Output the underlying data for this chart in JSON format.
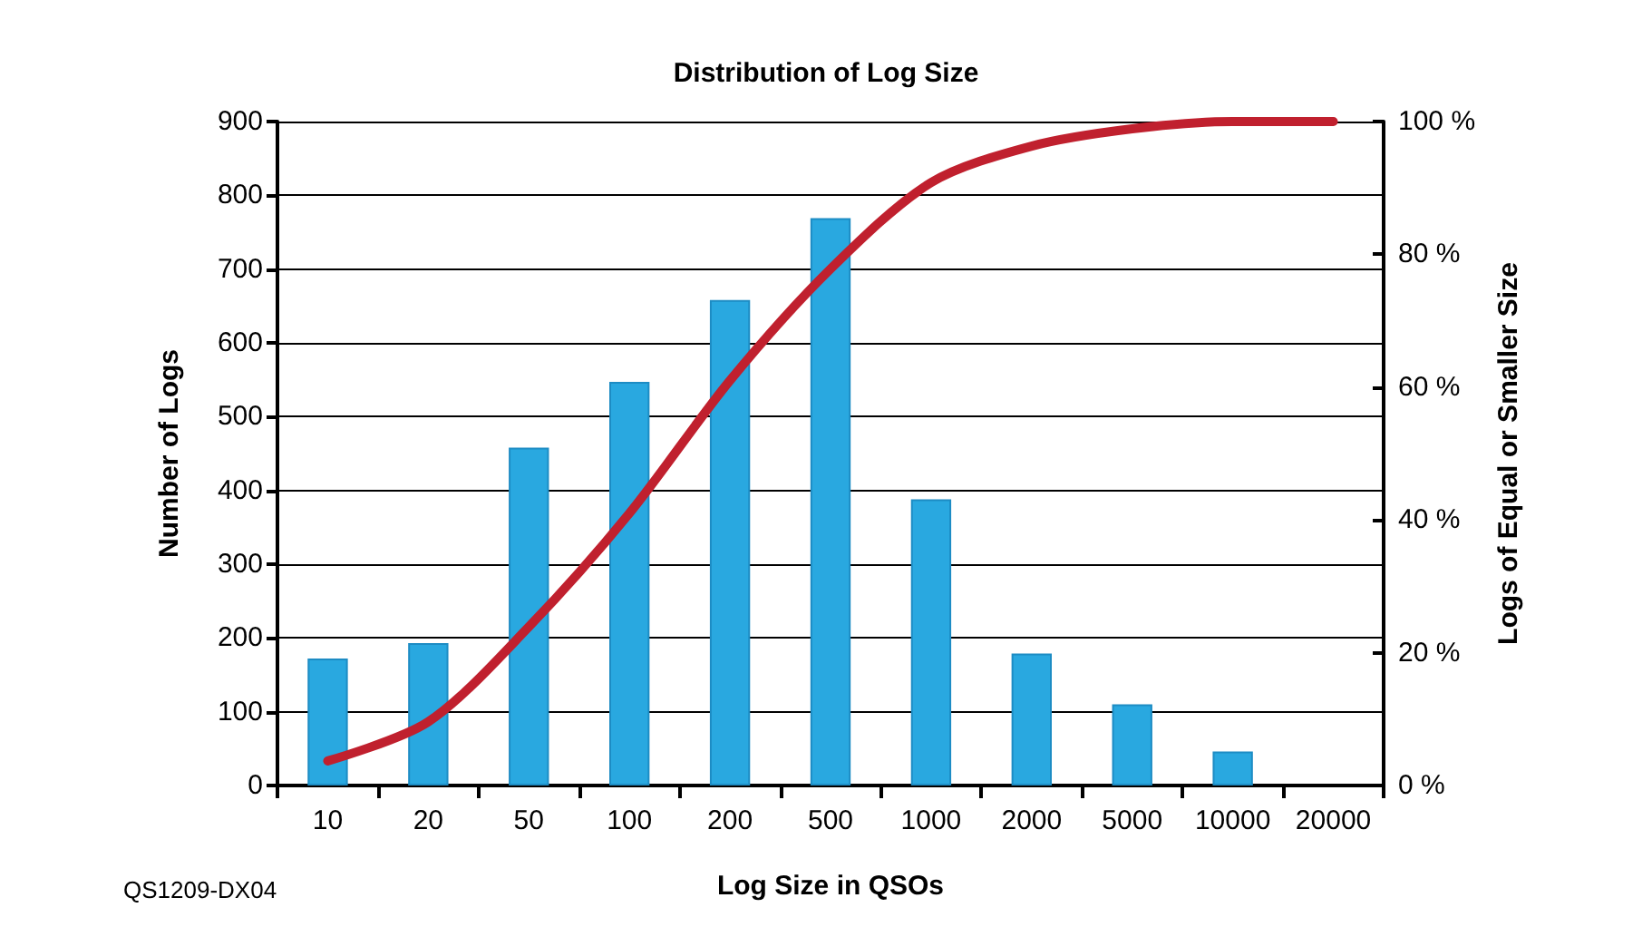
{
  "chart_data": {
    "type": "bar",
    "title": "Distribution of Log Size",
    "xlabel": "Log Size in QSOs",
    "ylabel": "Number of Logs",
    "y2label": "Logs of Equal or Smaller Size",
    "categories": [
      "10",
      "20",
      "50",
      "100",
      "200",
      "500",
      "1000",
      "2000",
      "5000",
      "10000",
      "20000"
    ],
    "series": [
      {
        "color": "#29a8e0",
        "values": [
          172,
          193,
          458,
          547,
          658,
          769,
          388,
          179,
          110,
          46,
          null
        ]
      },
      {
        "type": "line",
        "axis": "y2",
        "color": "#c0202e",
        "marker": "none",
        "line_style": "solid",
        "values": [
          3.7,
          9.6,
          23.9,
          41,
          61,
          77.8,
          90.8,
          96.3,
          98.9,
          100,
          100
        ]
      }
    ],
    "ylim": [
      0,
      900
    ],
    "yticks": [
      0,
      100,
      200,
      300,
      400,
      500,
      600,
      700,
      800,
      900
    ],
    "y2lim": [
      0,
      100
    ],
    "y2ticks": [
      {
        "value": 0,
        "label": "0 %"
      },
      {
        "value": 20,
        "label": "20 %"
      },
      {
        "value": 40,
        "label": "40 %"
      },
      {
        "value": 60,
        "label": "60 %"
      },
      {
        "value": 80,
        "label": "80 %"
      },
      {
        "value": 100,
        "label": "100 %"
      }
    ],
    "grid": "y",
    "annotations": [
      "QS1209-DX04"
    ]
  }
}
